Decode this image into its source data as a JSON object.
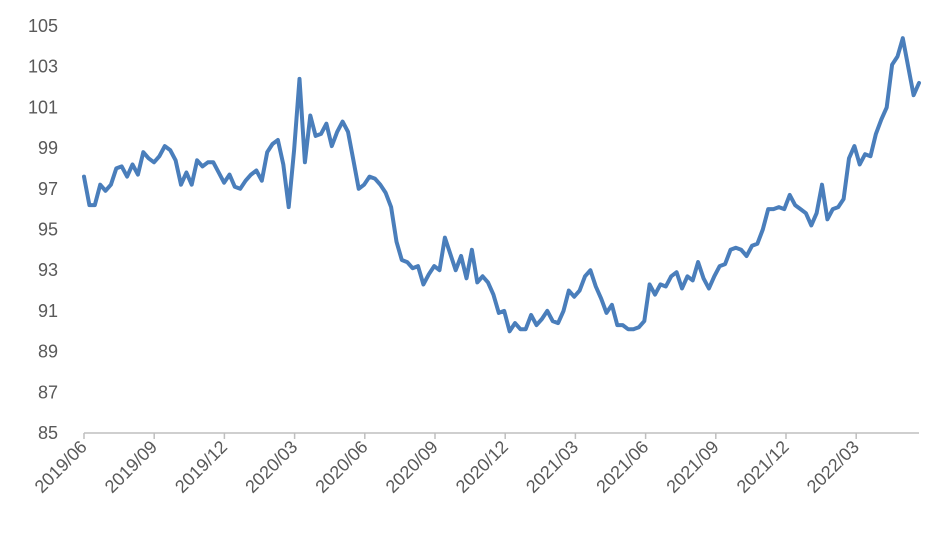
{
  "chart_data": {
    "type": "line",
    "title": "",
    "xlabel": "",
    "ylabel": "",
    "ylim": [
      85,
      105
    ],
    "y_ticks": [
      85,
      87,
      89,
      91,
      93,
      95,
      97,
      99,
      101,
      103,
      105
    ],
    "x_tick_labels": [
      "2019/06",
      "2019/09",
      "2019/12",
      "2020/03",
      "2020/06",
      "2020/09",
      "2020/12",
      "2021/03",
      "2021/06",
      "2021/09",
      "2021/12",
      "2022/03"
    ],
    "line_color": "#4a7ebb",
    "axis_color": "#bfbfbf",
    "grid": false,
    "legend": "none",
    "series": [
      {
        "x": [
          "2019-06-03",
          "2019-06-10",
          "2019-06-17",
          "2019-06-24",
          "2019-07-01",
          "2019-07-08",
          "2019-07-15",
          "2019-07-22",
          "2019-07-29",
          "2019-08-05",
          "2019-08-12",
          "2019-08-19",
          "2019-08-26",
          "2019-09-02",
          "2019-09-09",
          "2019-09-16",
          "2019-09-23",
          "2019-09-30",
          "2019-10-07",
          "2019-10-14",
          "2019-10-21",
          "2019-10-28",
          "2019-11-04",
          "2019-11-11",
          "2019-11-18",
          "2019-11-25",
          "2019-12-02",
          "2019-12-09",
          "2019-12-16",
          "2019-12-23",
          "2019-12-30",
          "2020-01-06",
          "2020-01-13",
          "2020-01-20",
          "2020-01-27",
          "2020-02-03",
          "2020-02-10",
          "2020-02-17",
          "2020-02-24",
          "2020-03-02",
          "2020-03-09",
          "2020-03-16",
          "2020-03-23",
          "2020-03-30",
          "2020-04-06",
          "2020-04-13",
          "2020-04-20",
          "2020-04-27",
          "2020-05-04",
          "2020-05-11",
          "2020-05-18",
          "2020-05-25",
          "2020-06-01",
          "2020-06-08",
          "2020-06-15",
          "2020-06-22",
          "2020-06-29",
          "2020-07-06",
          "2020-07-13",
          "2020-07-20",
          "2020-07-27",
          "2020-08-03",
          "2020-08-10",
          "2020-08-17",
          "2020-08-24",
          "2020-08-31",
          "2020-09-07",
          "2020-09-14",
          "2020-09-21",
          "2020-09-28",
          "2020-10-05",
          "2020-10-12",
          "2020-10-19",
          "2020-10-26",
          "2020-11-02",
          "2020-11-09",
          "2020-11-16",
          "2020-11-23",
          "2020-11-30",
          "2020-12-07",
          "2020-12-14",
          "2020-12-21",
          "2020-12-28",
          "2021-01-04",
          "2021-01-11",
          "2021-01-18",
          "2021-01-25",
          "2021-02-01",
          "2021-02-08",
          "2021-02-15",
          "2021-02-22",
          "2021-03-01",
          "2021-03-08",
          "2021-03-15",
          "2021-03-22",
          "2021-03-29",
          "2021-04-05",
          "2021-04-12",
          "2021-04-19",
          "2021-04-26",
          "2021-05-03",
          "2021-05-10",
          "2021-05-17",
          "2021-05-24",
          "2021-05-31",
          "2021-06-07",
          "2021-06-14",
          "2021-06-21",
          "2021-06-28",
          "2021-07-05",
          "2021-07-12",
          "2021-07-19",
          "2021-07-26",
          "2021-08-02",
          "2021-08-09",
          "2021-08-16",
          "2021-08-23",
          "2021-08-30",
          "2021-09-06",
          "2021-09-13",
          "2021-09-20",
          "2021-09-27",
          "2021-10-04",
          "2021-10-11",
          "2021-10-18",
          "2021-10-25",
          "2021-11-01",
          "2021-11-08",
          "2021-11-15",
          "2021-11-22",
          "2021-11-29",
          "2021-12-06",
          "2021-12-13",
          "2021-12-20",
          "2021-12-27",
          "2022-01-03",
          "2022-01-10",
          "2022-01-17",
          "2022-01-24",
          "2022-01-31",
          "2022-02-07",
          "2022-02-14",
          "2022-02-21",
          "2022-02-28",
          "2022-03-07",
          "2022-03-14",
          "2022-03-21",
          "2022-03-28",
          "2022-04-04",
          "2022-04-11",
          "2022-04-18",
          "2022-04-25",
          "2022-05-02",
          "2022-05-09",
          "2022-05-16",
          "2022-05-23"
        ],
        "values": [
          97.6,
          96.2,
          96.2,
          97.2,
          96.9,
          97.2,
          98.0,
          98.1,
          97.6,
          98.2,
          97.7,
          98.8,
          98.5,
          98.3,
          98.6,
          99.1,
          98.9,
          98.4,
          97.2,
          97.8,
          97.2,
          98.4,
          98.1,
          98.3,
          98.3,
          97.8,
          97.3,
          97.7,
          97.1,
          97.0,
          97.4,
          97.7,
          97.9,
          97.4,
          98.8,
          99.2,
          99.4,
          98.2,
          96.1,
          98.9,
          102.4,
          98.3,
          100.6,
          99.6,
          99.7,
          100.2,
          99.1,
          99.8,
          100.3,
          99.8,
          98.4,
          97.0,
          97.2,
          97.6,
          97.5,
          97.2,
          96.8,
          96.1,
          94.4,
          93.5,
          93.4,
          93.1,
          93.2,
          92.3,
          92.8,
          93.2,
          93.0,
          94.6,
          93.8,
          93.0,
          93.7,
          92.6,
          94.0,
          92.4,
          92.7,
          92.4,
          91.8,
          90.9,
          91.0,
          90.0,
          90.4,
          90.1,
          90.1,
          90.8,
          90.3,
          90.6,
          91.0,
          90.5,
          90.4,
          91.0,
          92.0,
          91.7,
          92.0,
          92.7,
          93.0,
          92.2,
          91.6,
          90.9,
          91.3,
          90.3,
          90.3,
          90.1,
          90.1,
          90.2,
          90.5,
          92.3,
          91.8,
          92.3,
          92.2,
          92.7,
          92.9,
          92.1,
          92.7,
          92.5,
          93.4,
          92.6,
          92.1,
          92.7,
          93.2,
          93.3,
          94.0,
          94.1,
          94.0,
          93.7,
          94.2,
          94.3,
          95.0,
          96.0,
          96.0,
          96.1,
          96.0,
          96.7,
          96.2,
          96.0,
          95.8,
          95.2,
          95.8,
          97.2,
          95.5,
          96.0,
          96.1,
          96.5,
          98.5,
          99.1,
          98.2,
          98.7,
          98.6,
          99.7,
          100.4,
          101.0,
          103.1,
          103.5,
          104.4,
          103.0,
          101.6,
          102.2
        ]
      }
    ]
  }
}
